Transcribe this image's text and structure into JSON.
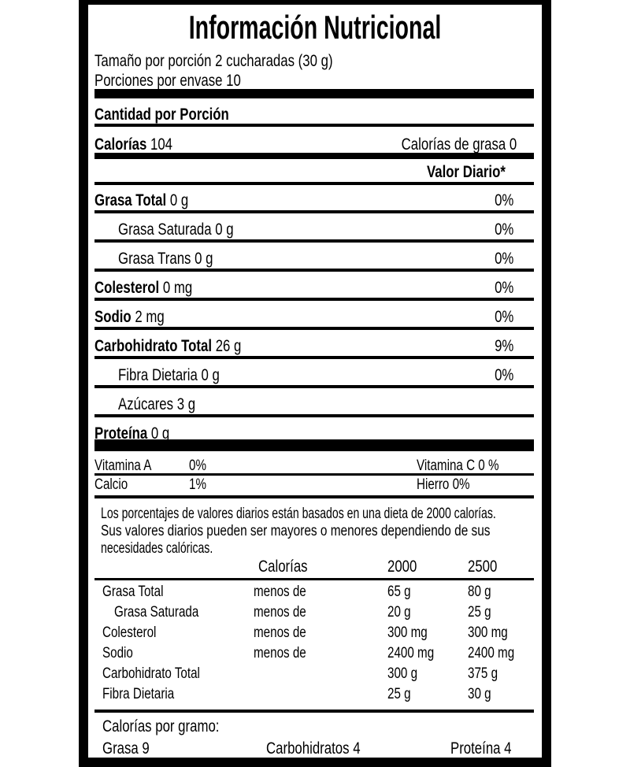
{
  "title": "Información Nutricional",
  "serving_size": "Tamaño por porción 2 cucharadas  (30 g)",
  "servings_per_container": "Porciones por envase  10",
  "amount_per_serving": "Cantidad  por Porción",
  "calories": {
    "label": "Calorías",
    "value": "104",
    "fat_calories": "Calorías de grasa 0"
  },
  "daily_value_header": "Valor Diario*",
  "nutrients": [
    {
      "name": "Grasa Total",
      "amount": "0 g",
      "dv": "0%",
      "bold": true
    },
    {
      "name": "Grasa Saturada",
      "amount": "0 g",
      "dv": "0%",
      "bold": false
    },
    {
      "name": "Grasa Trans",
      "amount": "0 g",
      "dv": "0%",
      "bold": false
    },
    {
      "name": "Colesterol",
      "amount": "0 mg",
      "dv": "0%",
      "bold": true
    },
    {
      "name": "Sodio",
      "amount": "2 mg",
      "dv": "0%",
      "bold": true
    },
    {
      "name": "Carbohidrato Total",
      "amount": "26 g",
      "dv": "9%",
      "bold": true
    },
    {
      "name": "Fibra Dietaria",
      "amount": "0 g",
      "dv": "0%",
      "bold": false
    },
    {
      "name": "Azúcares",
      "amount": "3 g",
      "dv": "",
      "bold": false
    },
    {
      "name": "Proteína",
      "amount": "0 g",
      "dv": "",
      "bold": true
    }
  ],
  "vitamins": {
    "vit_a_label": "Vitamina A",
    "vit_a": "0%",
    "vit_c": "Vitamina C 0 %",
    "calcium_label": "Calcio",
    "calcium": "1%",
    "iron": "Hierro 0%"
  },
  "footnote": [
    "Los porcentajes de valores diarios están basados en una dieta de 2000 calorías.",
    "Sus valores diarios pueden ser mayores o menores dependiendo de sus",
    "necesidades calóricas."
  ],
  "reference_table": {
    "headers": [
      "Calorías",
      "2000",
      "2500"
    ],
    "rows": [
      [
        "Grasa Total",
        "menos de",
        "65 g",
        "80 g"
      ],
      [
        "Grasa Saturada",
        "menos de",
        "20 g",
        "25 g"
      ],
      [
        "Colesterol",
        "menos de",
        "300 mg",
        "300 mg"
      ],
      [
        "Sodio",
        "menos de",
        "2400 mg",
        "2400 mg"
      ],
      [
        "Carbohidrato Total",
        "",
        "300 g",
        "375 g"
      ],
      [
        "Fibra Dietaria",
        "",
        "25 g",
        "30 g"
      ]
    ]
  },
  "calories_per_gram": {
    "label": "Calorías por gramo:",
    "fat": "Grasa 9",
    "carbs": "Carbohidratos 4",
    "protein": "Proteína 4"
  }
}
